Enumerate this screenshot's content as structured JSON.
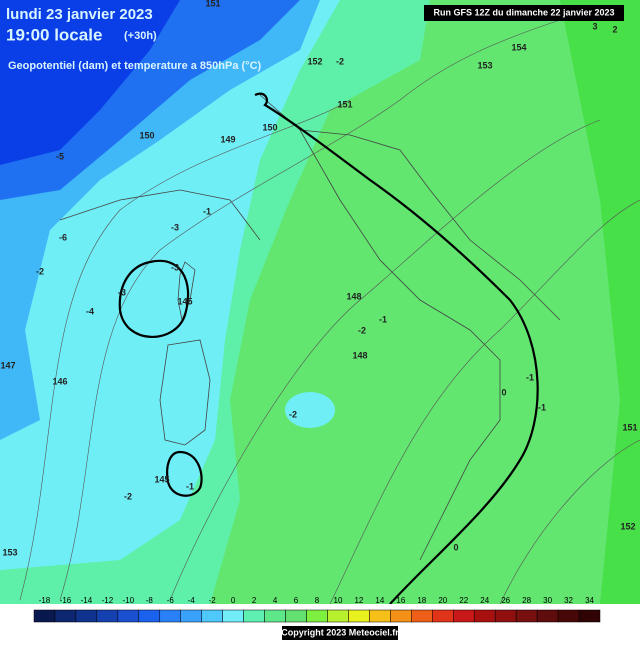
{
  "header": {
    "date": "lundi 23 janvier 2023",
    "time": "19:00 locale",
    "offset": "(+30h)",
    "subtitle": "Geopotentiel (dam) et temperature a 850hPa (°C)"
  },
  "run": "Run GFS 12Z du dimanche 22 janvier 2023",
  "geopotential_labels": [
    151,
    152,
    154,
    153,
    151,
    150,
    149,
    150,
    148,
    148,
    147,
    146,
    145,
    145,
    151,
    152,
    153
  ],
  "temperature_labels": [
    -3,
    -3,
    -1,
    -2,
    -2,
    -1,
    -2,
    0,
    0,
    -1,
    -1,
    -2,
    -4,
    -6,
    -5,
    2,
    3,
    -1,
    -2,
    -3
  ],
  "scale": {
    "ticks": [
      -18,
      -16,
      -14,
      -12,
      -10,
      -8,
      -6,
      -4,
      -2,
      0,
      2,
      4,
      6,
      8,
      10,
      12,
      14,
      16,
      18,
      20,
      22,
      24,
      26,
      28,
      30,
      32,
      34
    ],
    "colors": [
      "#0a1850",
      "#0d2670",
      "#10338f",
      "#1440b0",
      "#1a4fd0",
      "#1a62ee",
      "#2a80f6",
      "#3aa2fa",
      "#4fc8fc",
      "#70ecf6",
      "#5ef0b0",
      "#5ee88a",
      "#62e070",
      "#7ef040",
      "#b8f030",
      "#e8f020",
      "#f6c018",
      "#f29018",
      "#ee5f18",
      "#e03418",
      "#c81818",
      "#a81010",
      "#901010",
      "#781010",
      "#5e0c0c",
      "#480808",
      "#300404"
    ]
  },
  "copyright": "Copyright 2023 Meteociel.fr"
}
